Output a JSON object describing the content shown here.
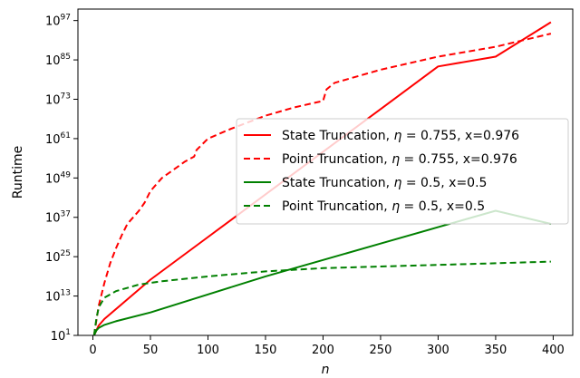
{
  "chart_data": {
    "type": "line",
    "title": "",
    "xlabel": "n",
    "ylabel": "Runtime",
    "xlim": [
      -13,
      417
    ],
    "ylim": [
      1,
      100.5
    ],
    "yscale": "log10",
    "grid": false,
    "legend_position": "center-right",
    "x_ticks": [
      0,
      50,
      100,
      150,
      200,
      250,
      300,
      350,
      400
    ],
    "x_tick_labels": [
      "0",
      "50",
      "100",
      "150",
      "200",
      "250",
      "300",
      "350",
      "400"
    ],
    "y_ticks": [
      1,
      13,
      25,
      37,
      49,
      61,
      73,
      85,
      97
    ],
    "y_tick_labels": [
      {
        "base": "10",
        "exp": "1"
      },
      {
        "base": "10",
        "exp": "13"
      },
      {
        "base": "10",
        "exp": "25"
      },
      {
        "base": "10",
        "exp": "37"
      },
      {
        "base": "10",
        "exp": "49"
      },
      {
        "base": "10",
        "exp": "61"
      },
      {
        "base": "10",
        "exp": "73"
      },
      {
        "base": "10",
        "exp": "85"
      },
      {
        "base": "10",
        "exp": "97"
      }
    ],
    "series": [
      {
        "name": "State Truncation, η = 0.755, x=0.976",
        "legend_parts": {
          "prefix": "State Truncation, ",
          "eta": "η",
          "rest": " = 0.755, x=0.976"
        },
        "color": "#ff0000",
        "dash": "solid",
        "x": [
          1,
          5,
          10,
          50,
          100,
          150,
          200,
          250,
          300,
          350,
          398
        ],
        "y": [
          1,
          4,
          6,
          18,
          31,
          44,
          57,
          70,
          83,
          86,
          96.5
        ]
      },
      {
        "name": "Point Truncation, η = 0.755, x=0.976",
        "legend_parts": {
          "prefix": "Point Truncation, ",
          "eta": "η",
          "rest": " = 0.755, x=0.976"
        },
        "color": "#ff0000",
        "dash": "dashed",
        "x": [
          1,
          5,
          10,
          15,
          20,
          25,
          30,
          40,
          45,
          50,
          55,
          60,
          70,
          80,
          88,
          90,
          100,
          120,
          150,
          175,
          200,
          203,
          210,
          250,
          300,
          350,
          398
        ],
        "y": [
          1,
          10,
          17,
          23,
          27.5,
          31.5,
          35,
          39,
          41.5,
          45,
          47,
          49,
          51.5,
          54,
          55.5,
          57.5,
          61,
          64,
          68,
          70.5,
          72.5,
          76,
          78,
          82,
          86,
          89,
          93
        ]
      },
      {
        "name": "State Truncation, η = 0.5, x=0.5",
        "legend_parts": {
          "prefix": "State Truncation, ",
          "eta": "η",
          "rest": " = 0.5, x=0.5"
        },
        "color": "#008000",
        "dash": "solid",
        "x": [
          1,
          3,
          5,
          10,
          20,
          50,
          100,
          150,
          200,
          250,
          300,
          350,
          398
        ],
        "y": [
          1,
          2.5,
          3.3,
          4.2,
          5.3,
          8,
          13.5,
          19,
          24,
          29,
          34,
          39,
          35
        ]
      },
      {
        "name": "Point Truncation, η = 0.5, x=0.5",
        "legend_parts": {
          "prefix": "Point Truncation, ",
          "eta": "η",
          "rest": " = 0.5, x=0.5"
        },
        "color": "#008000",
        "dash": "dashed",
        "x": [
          1,
          3,
          5,
          10,
          20,
          40,
          60,
          100,
          150,
          200,
          250,
          300,
          350,
          398
        ],
        "y": [
          1,
          6,
          9.5,
          12.5,
          14.5,
          16.5,
          17.5,
          19,
          20.5,
          21.5,
          22,
          22.5,
          23,
          23.5
        ]
      }
    ]
  }
}
